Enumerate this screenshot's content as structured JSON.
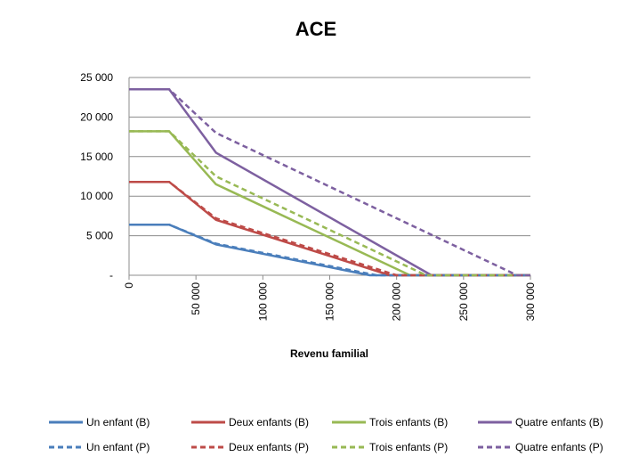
{
  "chart_data": {
    "type": "line",
    "title": "ACE",
    "xlabel": "Revenu familial",
    "ylabel": "",
    "xlim": [
      0,
      300000
    ],
    "ylim": [
      0,
      25000
    ],
    "x_ticks": [
      "0",
      "50 000",
      "100 000",
      "150 000",
      "200 000",
      "250 000",
      "300 000"
    ],
    "y_ticks": [
      "-",
      "5 000",
      "10 000",
      "15 000",
      "20 000",
      "25 000"
    ],
    "grid": "horizontal",
    "legend_position": "bottom",
    "series": [
      {
        "name": "Un enfant (B)",
        "color": "#4a7ebb",
        "dash": "solid",
        "x": [
          0,
          30000,
          65000,
          180000,
          300000
        ],
        "y": [
          6400,
          6400,
          3900,
          0,
          0
        ]
      },
      {
        "name": "Deux enfants (B)",
        "color": "#be4b48",
        "dash": "solid",
        "x": [
          0,
          30000,
          65000,
          195000,
          300000
        ],
        "y": [
          11800,
          11800,
          7000,
          0,
          0
        ]
      },
      {
        "name": "Trois enfants (B)",
        "color": "#98b954",
        "dash": "solid",
        "x": [
          0,
          30000,
          65000,
          210000,
          300000
        ],
        "y": [
          18200,
          18200,
          11500,
          0,
          0
        ]
      },
      {
        "name": "Quatre enfants (B)",
        "color": "#7d60a0",
        "dash": "solid",
        "x": [
          0,
          30000,
          65000,
          226000,
          300000
        ],
        "y": [
          23500,
          23500,
          15500,
          0,
          0
        ]
      },
      {
        "name": "Un enfant (P)",
        "color": "#4a7ebb",
        "dash": "dashed",
        "x": [
          0,
          30000,
          65000,
          185000,
          300000
        ],
        "y": [
          6400,
          6400,
          4000,
          0,
          0
        ]
      },
      {
        "name": "Deux enfants (P)",
        "color": "#be4b48",
        "dash": "dashed",
        "x": [
          0,
          30000,
          65000,
          200000,
          300000
        ],
        "y": [
          11800,
          11800,
          7200,
          0,
          0
        ]
      },
      {
        "name": "Trois enfants (P)",
        "color": "#98b954",
        "dash": "dashed",
        "x": [
          0,
          30000,
          65000,
          222000,
          300000
        ],
        "y": [
          18200,
          18200,
          12500,
          0,
          0
        ]
      },
      {
        "name": "Quatre enfants (P)",
        "color": "#7d60a0",
        "dash": "dashed",
        "x": [
          0,
          30000,
          65000,
          290000,
          300000
        ],
        "y": [
          23500,
          23500,
          18000,
          0,
          0
        ]
      }
    ]
  }
}
